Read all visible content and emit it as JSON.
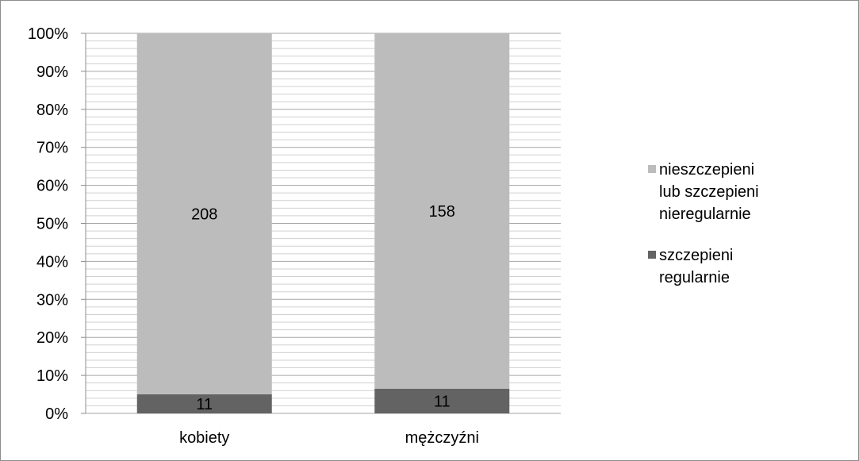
{
  "chart_data": {
    "type": "stacked-bar-100",
    "categories": [
      "kobiety",
      "mężczyźni"
    ],
    "series": [
      {
        "name": "szczepieni regularnie",
        "values": [
          11,
          11
        ],
        "color": "#636363"
      },
      {
        "name": "nieszczepieni lub szczepieni nieregularnie",
        "values": [
          208,
          158
        ],
        "color": "#bcbcbc"
      }
    ],
    "ylim": [
      0,
      100
    ],
    "yticks": [
      "0%",
      "10%",
      "20%",
      "30%",
      "40%",
      "50%",
      "60%",
      "70%",
      "80%",
      "90%",
      "100%"
    ],
    "grid": true,
    "legend_position": "right",
    "legend": [
      {
        "label": "nieszczepieni\nlub szczepieni\nnieregularnie",
        "color": "#bcbcbc"
      },
      {
        "label": "szczepieni\nregularnie",
        "color": "#636363"
      }
    ]
  }
}
